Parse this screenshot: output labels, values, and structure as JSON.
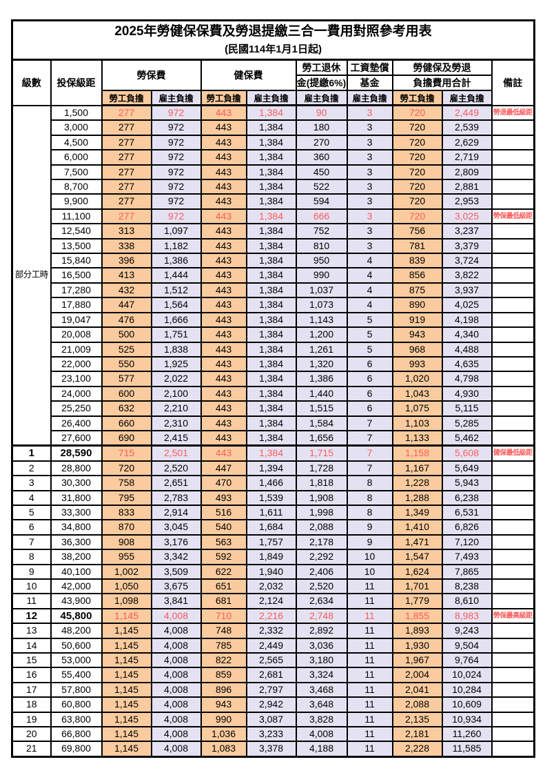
{
  "title": "2025年勞健保保費及勞退提繳三合一費用對照參考用表",
  "subtitle": "(民國114年1月1日起)",
  "colors": {
    "employee_burden_bg": "#FACB9E",
    "employer_burden_bg": "#E4E2F2",
    "highlight_text": "#FB5B5B",
    "border": "#000000"
  },
  "header": {
    "level": "級數",
    "bracket": "投保級距",
    "labor_insurance": "勞保費",
    "health_insurance": "健保費",
    "pension_line1": "勞工退休",
    "pension_line2": "金(提繳6%)",
    "fund_line1": "工資墊償",
    "fund_line2": "基金",
    "total_line1": "勞健保及勞退",
    "total_line2": "負擔費用合計",
    "note": "備註",
    "employee_burden": "勞工負擔",
    "employer_burden": "雇主負擔"
  },
  "part_time_label": "部分工時",
  "rows": [
    {
      "level": "",
      "bracket": "1,500",
      "li_emp": "277",
      "li_er": "972",
      "hi_emp": "443",
      "hi_er": "1,384",
      "pension": "90",
      "fund": "3",
      "tot_emp": "720",
      "tot_er": "2,449",
      "note": "勞退最低級距",
      "red": true,
      "bold": false
    },
    {
      "level": "",
      "bracket": "3,000",
      "li_emp": "277",
      "li_er": "972",
      "hi_emp": "443",
      "hi_er": "1,384",
      "pension": "180",
      "fund": "3",
      "tot_emp": "720",
      "tot_er": "2,539",
      "note": "",
      "red": false,
      "bold": false
    },
    {
      "level": "",
      "bracket": "4,500",
      "li_emp": "277",
      "li_er": "972",
      "hi_emp": "443",
      "hi_er": "1,384",
      "pension": "270",
      "fund": "3",
      "tot_emp": "720",
      "tot_er": "2,629",
      "note": "",
      "red": false,
      "bold": false
    },
    {
      "level": "",
      "bracket": "6,000",
      "li_emp": "277",
      "li_er": "972",
      "hi_emp": "443",
      "hi_er": "1,384",
      "pension": "360",
      "fund": "3",
      "tot_emp": "720",
      "tot_er": "2,719",
      "note": "",
      "red": false,
      "bold": false
    },
    {
      "level": "",
      "bracket": "7,500",
      "li_emp": "277",
      "li_er": "972",
      "hi_emp": "443",
      "hi_er": "1,384",
      "pension": "450",
      "fund": "3",
      "tot_emp": "720",
      "tot_er": "2,809",
      "note": "",
      "red": false,
      "bold": false
    },
    {
      "level": "",
      "bracket": "8,700",
      "li_emp": "277",
      "li_er": "972",
      "hi_emp": "443",
      "hi_er": "1,384",
      "pension": "522",
      "fund": "3",
      "tot_emp": "720",
      "tot_er": "2,881",
      "note": "",
      "red": false,
      "bold": false
    },
    {
      "level": "",
      "bracket": "9,900",
      "li_emp": "277",
      "li_er": "972",
      "hi_emp": "443",
      "hi_er": "1,384",
      "pension": "594",
      "fund": "3",
      "tot_emp": "720",
      "tot_er": "2,953",
      "note": "",
      "red": false,
      "bold": false
    },
    {
      "level": "",
      "bracket": "11,100",
      "li_emp": "277",
      "li_er": "972",
      "hi_emp": "443",
      "hi_er": "1,384",
      "pension": "666",
      "fund": "3",
      "tot_emp": "720",
      "tot_er": "3,025",
      "note": "勞保最低級距",
      "red": true,
      "bold": false
    },
    {
      "level": "",
      "bracket": "12,540",
      "li_emp": "313",
      "li_er": "1,097",
      "hi_emp": "443",
      "hi_er": "1,384",
      "pension": "752",
      "fund": "3",
      "tot_emp": "756",
      "tot_er": "3,237",
      "note": "",
      "red": false,
      "bold": false
    },
    {
      "level": "",
      "bracket": "13,500",
      "li_emp": "338",
      "li_er": "1,182",
      "hi_emp": "443",
      "hi_er": "1,384",
      "pension": "810",
      "fund": "3",
      "tot_emp": "781",
      "tot_er": "3,379",
      "note": "",
      "red": false,
      "bold": false
    },
    {
      "level": "",
      "bracket": "15,840",
      "li_emp": "396",
      "li_er": "1,386",
      "hi_emp": "443",
      "hi_er": "1,384",
      "pension": "950",
      "fund": "4",
      "tot_emp": "839",
      "tot_er": "3,724",
      "note": "",
      "red": false,
      "bold": false
    },
    {
      "level": "",
      "bracket": "16,500",
      "li_emp": "413",
      "li_er": "1,444",
      "hi_emp": "443",
      "hi_er": "1,384",
      "pension": "990",
      "fund": "4",
      "tot_emp": "856",
      "tot_er": "3,822",
      "note": "",
      "red": false,
      "bold": false
    },
    {
      "level": "",
      "bracket": "17,280",
      "li_emp": "432",
      "li_er": "1,512",
      "hi_emp": "443",
      "hi_er": "1,384",
      "pension": "1,037",
      "fund": "4",
      "tot_emp": "875",
      "tot_er": "3,937",
      "note": "",
      "red": false,
      "bold": false
    },
    {
      "level": "",
      "bracket": "17,880",
      "li_emp": "447",
      "li_er": "1,564",
      "hi_emp": "443",
      "hi_er": "1,384",
      "pension": "1,073",
      "fund": "4",
      "tot_emp": "890",
      "tot_er": "4,025",
      "note": "",
      "red": false,
      "bold": false
    },
    {
      "level": "",
      "bracket": "19,047",
      "li_emp": "476",
      "li_er": "1,666",
      "hi_emp": "443",
      "hi_er": "1,384",
      "pension": "1,143",
      "fund": "5",
      "tot_emp": "919",
      "tot_er": "4,198",
      "note": "",
      "red": false,
      "bold": false
    },
    {
      "level": "",
      "bracket": "20,008",
      "li_emp": "500",
      "li_er": "1,751",
      "hi_emp": "443",
      "hi_er": "1,384",
      "pension": "1,200",
      "fund": "5",
      "tot_emp": "943",
      "tot_er": "4,340",
      "note": "",
      "red": false,
      "bold": false
    },
    {
      "level": "",
      "bracket": "21,009",
      "li_emp": "525",
      "li_er": "1,838",
      "hi_emp": "443",
      "hi_er": "1,384",
      "pension": "1,261",
      "fund": "5",
      "tot_emp": "968",
      "tot_er": "4,488",
      "note": "",
      "red": false,
      "bold": false
    },
    {
      "level": "",
      "bracket": "22,000",
      "li_emp": "550",
      "li_er": "1,925",
      "hi_emp": "443",
      "hi_er": "1,384",
      "pension": "1,320",
      "fund": "6",
      "tot_emp": "993",
      "tot_er": "4,635",
      "note": "",
      "red": false,
      "bold": false
    },
    {
      "level": "",
      "bracket": "23,100",
      "li_emp": "577",
      "li_er": "2,022",
      "hi_emp": "443",
      "hi_er": "1,384",
      "pension": "1,386",
      "fund": "6",
      "tot_emp": "1,020",
      "tot_er": "4,798",
      "note": "",
      "red": false,
      "bold": false
    },
    {
      "level": "",
      "bracket": "24,000",
      "li_emp": "600",
      "li_er": "2,100",
      "hi_emp": "443",
      "hi_er": "1,384",
      "pension": "1,440",
      "fund": "6",
      "tot_emp": "1,043",
      "tot_er": "4,930",
      "note": "",
      "red": false,
      "bold": false
    },
    {
      "level": "",
      "bracket": "25,250",
      "li_emp": "632",
      "li_er": "2,210",
      "hi_emp": "443",
      "hi_er": "1,384",
      "pension": "1,515",
      "fund": "6",
      "tot_emp": "1,075",
      "tot_er": "5,115",
      "note": "",
      "red": false,
      "bold": false
    },
    {
      "level": "",
      "bracket": "26,400",
      "li_emp": "660",
      "li_er": "2,310",
      "hi_emp": "443",
      "hi_er": "1,384",
      "pension": "1,584",
      "fund": "7",
      "tot_emp": "1,103",
      "tot_er": "5,285",
      "note": "",
      "red": false,
      "bold": false
    },
    {
      "level": "",
      "bracket": "27,600",
      "li_emp": "690",
      "li_er": "2,415",
      "hi_emp": "443",
      "hi_er": "1,384",
      "pension": "1,656",
      "fund": "7",
      "tot_emp": "1,133",
      "tot_er": "5,462",
      "note": "",
      "red": false,
      "bold": false
    },
    {
      "level": "1",
      "bracket": "28,590",
      "li_emp": "715",
      "li_er": "2,501",
      "hi_emp": "443",
      "hi_er": "1,384",
      "pension": "1,715",
      "fund": "7",
      "tot_emp": "1,158",
      "tot_er": "5,608",
      "note": "健保最低級距",
      "red": true,
      "bold": true
    },
    {
      "level": "2",
      "bracket": "28,800",
      "li_emp": "720",
      "li_er": "2,520",
      "hi_emp": "447",
      "hi_er": "1,394",
      "pension": "1,728",
      "fund": "7",
      "tot_emp": "1,167",
      "tot_er": "5,649",
      "note": "",
      "red": false,
      "bold": false
    },
    {
      "level": "3",
      "bracket": "30,300",
      "li_emp": "758",
      "li_er": "2,651",
      "hi_emp": "470",
      "hi_er": "1,466",
      "pension": "1,818",
      "fund": "8",
      "tot_emp": "1,228",
      "tot_er": "5,943",
      "note": "",
      "red": false,
      "bold": false
    },
    {
      "level": "4",
      "bracket": "31,800",
      "li_emp": "795",
      "li_er": "2,783",
      "hi_emp": "493",
      "hi_er": "1,539",
      "pension": "1,908",
      "fund": "8",
      "tot_emp": "1,288",
      "tot_er": "6,238",
      "note": "",
      "red": false,
      "bold": false
    },
    {
      "level": "5",
      "bracket": "33,300",
      "li_emp": "833",
      "li_er": "2,914",
      "hi_emp": "516",
      "hi_er": "1,611",
      "pension": "1,998",
      "fund": "8",
      "tot_emp": "1,349",
      "tot_er": "6,531",
      "note": "",
      "red": false,
      "bold": false
    },
    {
      "level": "6",
      "bracket": "34,800",
      "li_emp": "870",
      "li_er": "3,045",
      "hi_emp": "540",
      "hi_er": "1,684",
      "pension": "2,088",
      "fund": "9",
      "tot_emp": "1,410",
      "tot_er": "6,826",
      "note": "",
      "red": false,
      "bold": false
    },
    {
      "level": "7",
      "bracket": "36,300",
      "li_emp": "908",
      "li_er": "3,176",
      "hi_emp": "563",
      "hi_er": "1,757",
      "pension": "2,178",
      "fund": "9",
      "tot_emp": "1,471",
      "tot_er": "7,120",
      "note": "",
      "red": false,
      "bold": false
    },
    {
      "level": "8",
      "bracket": "38,200",
      "li_emp": "955",
      "li_er": "3,342",
      "hi_emp": "592",
      "hi_er": "1,849",
      "pension": "2,292",
      "fund": "10",
      "tot_emp": "1,547",
      "tot_er": "7,493",
      "note": "",
      "red": false,
      "bold": false
    },
    {
      "level": "9",
      "bracket": "40,100",
      "li_emp": "1,002",
      "li_er": "3,509",
      "hi_emp": "622",
      "hi_er": "1,940",
      "pension": "2,406",
      "fund": "10",
      "tot_emp": "1,624",
      "tot_er": "7,865",
      "note": "",
      "red": false,
      "bold": false
    },
    {
      "level": "10",
      "bracket": "42,000",
      "li_emp": "1,050",
      "li_er": "3,675",
      "hi_emp": "651",
      "hi_er": "2,032",
      "pension": "2,520",
      "fund": "11",
      "tot_emp": "1,701",
      "tot_er": "8,238",
      "note": "",
      "red": false,
      "bold": false
    },
    {
      "level": "11",
      "bracket": "43,900",
      "li_emp": "1,098",
      "li_er": "3,841",
      "hi_emp": "681",
      "hi_er": "2,124",
      "pension": "2,634",
      "fund": "11",
      "tot_emp": "1,779",
      "tot_er": "8,610",
      "note": "",
      "red": false,
      "bold": false
    },
    {
      "level": "12",
      "bracket": "45,800",
      "li_emp": "1,145",
      "li_er": "4,008",
      "hi_emp": "710",
      "hi_er": "2,216",
      "pension": "2,748",
      "fund": "11",
      "tot_emp": "1,855",
      "tot_er": "8,983",
      "note": "勞保最高級距",
      "red": true,
      "bold": true
    },
    {
      "level": "13",
      "bracket": "48,200",
      "li_emp": "1,145",
      "li_er": "4,008",
      "hi_emp": "748",
      "hi_er": "2,332",
      "pension": "2,892",
      "fund": "11",
      "tot_emp": "1,893",
      "tot_er": "9,243",
      "note": "",
      "red": false,
      "bold": false
    },
    {
      "level": "14",
      "bracket": "50,600",
      "li_emp": "1,145",
      "li_er": "4,008",
      "hi_emp": "785",
      "hi_er": "2,449",
      "pension": "3,036",
      "fund": "11",
      "tot_emp": "1,930",
      "tot_er": "9,504",
      "note": "",
      "red": false,
      "bold": false
    },
    {
      "level": "15",
      "bracket": "53,000",
      "li_emp": "1,145",
      "li_er": "4,008",
      "hi_emp": "822",
      "hi_er": "2,565",
      "pension": "3,180",
      "fund": "11",
      "tot_emp": "1,967",
      "tot_er": "9,764",
      "note": "",
      "red": false,
      "bold": false
    },
    {
      "level": "16",
      "bracket": "55,400",
      "li_emp": "1,145",
      "li_er": "4,008",
      "hi_emp": "859",
      "hi_er": "2,681",
      "pension": "3,324",
      "fund": "11",
      "tot_emp": "2,004",
      "tot_er": "10,024",
      "note": "",
      "red": false,
      "bold": false
    },
    {
      "level": "17",
      "bracket": "57,800",
      "li_emp": "1,145",
      "li_er": "4,008",
      "hi_emp": "896",
      "hi_er": "2,797",
      "pension": "3,468",
      "fund": "11",
      "tot_emp": "2,041",
      "tot_er": "10,284",
      "note": "",
      "red": false,
      "bold": false
    },
    {
      "level": "18",
      "bracket": "60,800",
      "li_emp": "1,145",
      "li_er": "4,008",
      "hi_emp": "943",
      "hi_er": "2,942",
      "pension": "3,648",
      "fund": "11",
      "tot_emp": "2,088",
      "tot_er": "10,609",
      "note": "",
      "red": false,
      "bold": false
    },
    {
      "level": "19",
      "bracket": "63,800",
      "li_emp": "1,145",
      "li_er": "4,008",
      "hi_emp": "990",
      "hi_er": "3,087",
      "pension": "3,828",
      "fund": "11",
      "tot_emp": "2,135",
      "tot_er": "10,934",
      "note": "",
      "red": false,
      "bold": false
    },
    {
      "level": "20",
      "bracket": "66,800",
      "li_emp": "1,145",
      "li_er": "4,008",
      "hi_emp": "1,036",
      "hi_er": "3,233",
      "pension": "4,008",
      "fund": "11",
      "tot_emp": "2,181",
      "tot_er": "11,260",
      "note": "",
      "red": false,
      "bold": false
    },
    {
      "level": "21",
      "bracket": "69,800",
      "li_emp": "1,145",
      "li_er": "4,008",
      "hi_emp": "1,083",
      "hi_er": "3,378",
      "pension": "4,188",
      "fund": "11",
      "tot_emp": "2,228",
      "tot_er": "11,585",
      "note": "",
      "red": false,
      "bold": false
    }
  ]
}
